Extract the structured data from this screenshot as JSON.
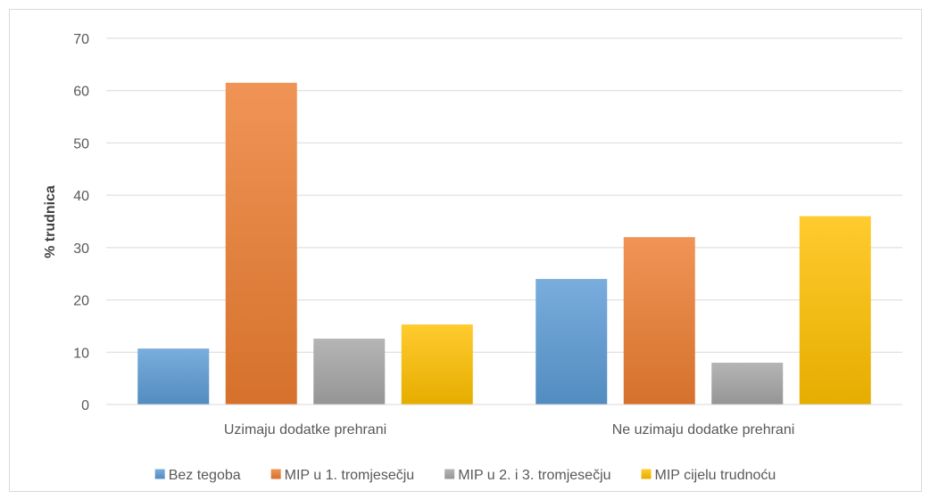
{
  "chart_data": {
    "type": "bar",
    "title": "",
    "xlabel": "",
    "ylabel": "% trudnica",
    "ylim": [
      0,
      70
    ],
    "yticks": [
      0,
      10,
      20,
      30,
      40,
      50,
      60,
      70
    ],
    "grid": true,
    "legend_position": "bottom",
    "categories": [
      "Uzimaju dodatke prehrani",
      "Ne uzimaju dodatke prehrani"
    ],
    "series": [
      {
        "name": "Bez tegoba",
        "values": [
          10.7,
          24.0
        ],
        "color": "#5b9bd5"
      },
      {
        "name": "MIP u 1. tromjesečju",
        "values": [
          61.5,
          32.0
        ],
        "color": "#ed7d31"
      },
      {
        "name": "MIP u 2. i 3. tromjesečju",
        "values": [
          12.6,
          8.0
        ],
        "color": "#a5a5a5"
      },
      {
        "name": "MIP cijelu trudnoću",
        "values": [
          15.3,
          36.0
        ],
        "color": "#ffc000"
      }
    ]
  }
}
